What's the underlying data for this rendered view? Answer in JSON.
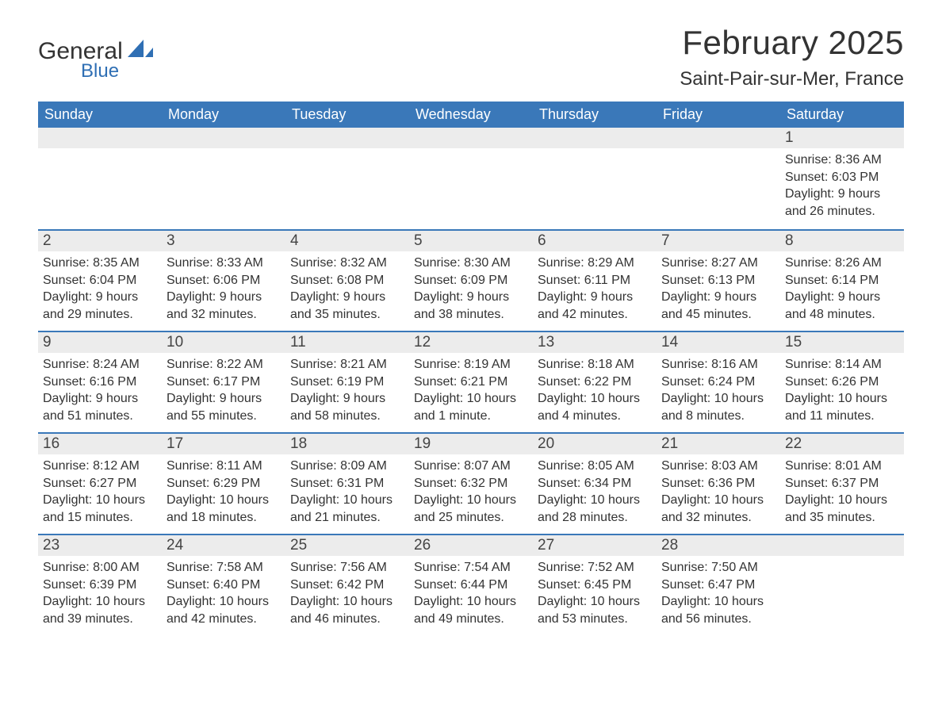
{
  "logo": {
    "word1": "General",
    "word2": "Blue"
  },
  "header": {
    "month_title": "February 2025",
    "location": "Saint-Pair-sur-Mer, France"
  },
  "calendar": {
    "day_headers": [
      "Sunday",
      "Monday",
      "Tuesday",
      "Wednesday",
      "Thursday",
      "Friday",
      "Saturday"
    ],
    "header_bg": "#3a78b9",
    "header_fg": "#ffffff",
    "daynum_bg": "#ececec",
    "row_border_color": "#3a78b9",
    "text_color": "#333333",
    "weeks": [
      [
        null,
        null,
        null,
        null,
        null,
        null,
        {
          "n": "1",
          "sunrise": "Sunrise: 8:36 AM",
          "sunset": "Sunset: 6:03 PM",
          "daylight1": "Daylight: 9 hours",
          "daylight2": "and 26 minutes."
        }
      ],
      [
        {
          "n": "2",
          "sunrise": "Sunrise: 8:35 AM",
          "sunset": "Sunset: 6:04 PM",
          "daylight1": "Daylight: 9 hours",
          "daylight2": "and 29 minutes."
        },
        {
          "n": "3",
          "sunrise": "Sunrise: 8:33 AM",
          "sunset": "Sunset: 6:06 PM",
          "daylight1": "Daylight: 9 hours",
          "daylight2": "and 32 minutes."
        },
        {
          "n": "4",
          "sunrise": "Sunrise: 8:32 AM",
          "sunset": "Sunset: 6:08 PM",
          "daylight1": "Daylight: 9 hours",
          "daylight2": "and 35 minutes."
        },
        {
          "n": "5",
          "sunrise": "Sunrise: 8:30 AM",
          "sunset": "Sunset: 6:09 PM",
          "daylight1": "Daylight: 9 hours",
          "daylight2": "and 38 minutes."
        },
        {
          "n": "6",
          "sunrise": "Sunrise: 8:29 AM",
          "sunset": "Sunset: 6:11 PM",
          "daylight1": "Daylight: 9 hours",
          "daylight2": "and 42 minutes."
        },
        {
          "n": "7",
          "sunrise": "Sunrise: 8:27 AM",
          "sunset": "Sunset: 6:13 PM",
          "daylight1": "Daylight: 9 hours",
          "daylight2": "and 45 minutes."
        },
        {
          "n": "8",
          "sunrise": "Sunrise: 8:26 AM",
          "sunset": "Sunset: 6:14 PM",
          "daylight1": "Daylight: 9 hours",
          "daylight2": "and 48 minutes."
        }
      ],
      [
        {
          "n": "9",
          "sunrise": "Sunrise: 8:24 AM",
          "sunset": "Sunset: 6:16 PM",
          "daylight1": "Daylight: 9 hours",
          "daylight2": "and 51 minutes."
        },
        {
          "n": "10",
          "sunrise": "Sunrise: 8:22 AM",
          "sunset": "Sunset: 6:17 PM",
          "daylight1": "Daylight: 9 hours",
          "daylight2": "and 55 minutes."
        },
        {
          "n": "11",
          "sunrise": "Sunrise: 8:21 AM",
          "sunset": "Sunset: 6:19 PM",
          "daylight1": "Daylight: 9 hours",
          "daylight2": "and 58 minutes."
        },
        {
          "n": "12",
          "sunrise": "Sunrise: 8:19 AM",
          "sunset": "Sunset: 6:21 PM",
          "daylight1": "Daylight: 10 hours",
          "daylight2": "and 1 minute."
        },
        {
          "n": "13",
          "sunrise": "Sunrise: 8:18 AM",
          "sunset": "Sunset: 6:22 PM",
          "daylight1": "Daylight: 10 hours",
          "daylight2": "and 4 minutes."
        },
        {
          "n": "14",
          "sunrise": "Sunrise: 8:16 AM",
          "sunset": "Sunset: 6:24 PM",
          "daylight1": "Daylight: 10 hours",
          "daylight2": "and 8 minutes."
        },
        {
          "n": "15",
          "sunrise": "Sunrise: 8:14 AM",
          "sunset": "Sunset: 6:26 PM",
          "daylight1": "Daylight: 10 hours",
          "daylight2": "and 11 minutes."
        }
      ],
      [
        {
          "n": "16",
          "sunrise": "Sunrise: 8:12 AM",
          "sunset": "Sunset: 6:27 PM",
          "daylight1": "Daylight: 10 hours",
          "daylight2": "and 15 minutes."
        },
        {
          "n": "17",
          "sunrise": "Sunrise: 8:11 AM",
          "sunset": "Sunset: 6:29 PM",
          "daylight1": "Daylight: 10 hours",
          "daylight2": "and 18 minutes."
        },
        {
          "n": "18",
          "sunrise": "Sunrise: 8:09 AM",
          "sunset": "Sunset: 6:31 PM",
          "daylight1": "Daylight: 10 hours",
          "daylight2": "and 21 minutes."
        },
        {
          "n": "19",
          "sunrise": "Sunrise: 8:07 AM",
          "sunset": "Sunset: 6:32 PM",
          "daylight1": "Daylight: 10 hours",
          "daylight2": "and 25 minutes."
        },
        {
          "n": "20",
          "sunrise": "Sunrise: 8:05 AM",
          "sunset": "Sunset: 6:34 PM",
          "daylight1": "Daylight: 10 hours",
          "daylight2": "and 28 minutes."
        },
        {
          "n": "21",
          "sunrise": "Sunrise: 8:03 AM",
          "sunset": "Sunset: 6:36 PM",
          "daylight1": "Daylight: 10 hours",
          "daylight2": "and 32 minutes."
        },
        {
          "n": "22",
          "sunrise": "Sunrise: 8:01 AM",
          "sunset": "Sunset: 6:37 PM",
          "daylight1": "Daylight: 10 hours",
          "daylight2": "and 35 minutes."
        }
      ],
      [
        {
          "n": "23",
          "sunrise": "Sunrise: 8:00 AM",
          "sunset": "Sunset: 6:39 PM",
          "daylight1": "Daylight: 10 hours",
          "daylight2": "and 39 minutes."
        },
        {
          "n": "24",
          "sunrise": "Sunrise: 7:58 AM",
          "sunset": "Sunset: 6:40 PM",
          "daylight1": "Daylight: 10 hours",
          "daylight2": "and 42 minutes."
        },
        {
          "n": "25",
          "sunrise": "Sunrise: 7:56 AM",
          "sunset": "Sunset: 6:42 PM",
          "daylight1": "Daylight: 10 hours",
          "daylight2": "and 46 minutes."
        },
        {
          "n": "26",
          "sunrise": "Sunrise: 7:54 AM",
          "sunset": "Sunset: 6:44 PM",
          "daylight1": "Daylight: 10 hours",
          "daylight2": "and 49 minutes."
        },
        {
          "n": "27",
          "sunrise": "Sunrise: 7:52 AM",
          "sunset": "Sunset: 6:45 PM",
          "daylight1": "Daylight: 10 hours",
          "daylight2": "and 53 minutes."
        },
        {
          "n": "28",
          "sunrise": "Sunrise: 7:50 AM",
          "sunset": "Sunset: 6:47 PM",
          "daylight1": "Daylight: 10 hours",
          "daylight2": "and 56 minutes."
        },
        null
      ]
    ]
  }
}
